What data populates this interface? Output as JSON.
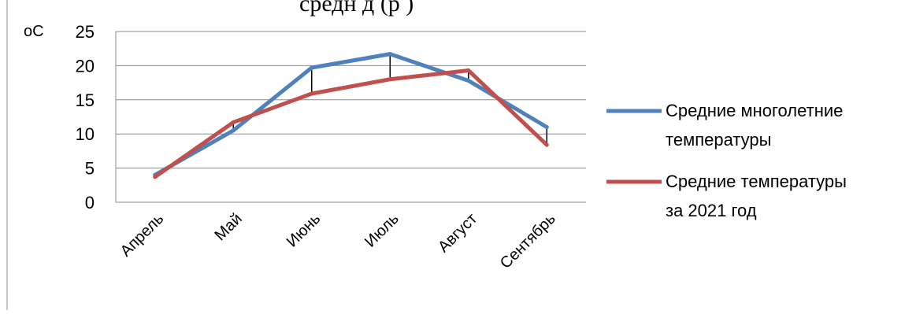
{
  "chart_data": {
    "type": "line",
    "title_fragment": "средн                                    д      (р     )",
    "ylabel": "оС",
    "ylim": [
      0,
      25
    ],
    "yticks": [
      0,
      5,
      10,
      15,
      20,
      25
    ],
    "grid": true,
    "legend_position": "right",
    "categories": [
      "Апрель",
      "Май",
      "Июнь",
      "Июль",
      "Август",
      "Сентябрь"
    ],
    "series": [
      {
        "name": "Средние многолетние температуры",
        "legend_lines": [
          "Средние многолетние",
          "температуры"
        ],
        "color": "#4f81bd",
        "values": [
          4.0,
          10.5,
          19.7,
          21.7,
          17.8,
          11.0
        ]
      },
      {
        "name": "Средние температуры за 2021 год",
        "legend_lines": [
          "Средние температуры",
          "за 2021 год"
        ],
        "color": "#c0504d",
        "values": [
          3.7,
          11.7,
          15.9,
          18.0,
          19.3,
          8.4
        ]
      }
    ],
    "difference_bars": true
  }
}
